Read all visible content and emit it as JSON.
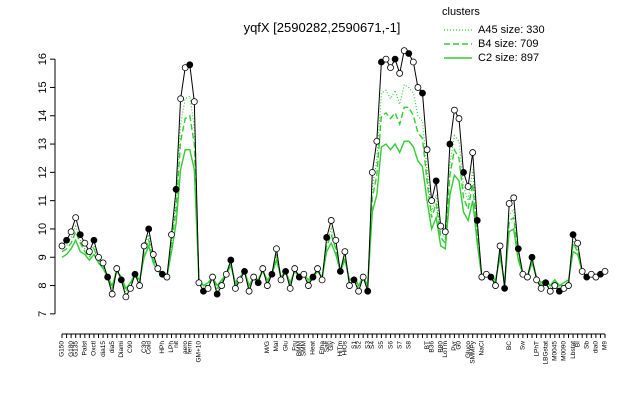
{
  "chart_data": {
    "type": "line",
    "title": "yqfX [2590282,2590671,-1]",
    "legend_title": "clusters",
    "ylim": [
      6.5,
      16.5
    ],
    "yticks": [
      7,
      8,
      9,
      10,
      11,
      12,
      13,
      14,
      15,
      16
    ],
    "categories": [
      "G150",
      null,
      "G180",
      "G135",
      null,
      "Palst",
      null,
      "Oxctl",
      null,
      "dia15",
      null,
      "dia5",
      null,
      "Diami",
      null,
      "C90",
      null,
      null,
      "C30",
      "Cold",
      null,
      null,
      "HPh",
      null,
      "LPh",
      "nit",
      null,
      "aero",
      "ferm",
      null,
      "GM+10",
      null,
      null,
      null,
      null,
      null,
      null,
      null,
      null,
      null,
      null,
      null,
      null,
      null,
      null,
      "M/G",
      null,
      "Mal",
      null,
      "Glu",
      null,
      "Fru",
      "BMM",
      "SMM",
      null,
      "Heat",
      null,
      "Etha",
      "Salt",
      "Gly",
      null,
      "HiTm",
      "HiOs",
      null,
      "S1",
      "S2",
      null,
      "S3",
      "S4",
      null,
      "S5",
      null,
      "S6",
      null,
      "S7",
      null,
      "S8",
      null,
      null,
      null,
      "BT",
      "B36",
      null,
      "B80",
      "LoTm",
      null,
      "Pyr",
      "G0",
      null,
      "Gluco",
      "SMMPy",
      null,
      "NaCl",
      null,
      null,
      null,
      null,
      null,
      "BC",
      null,
      null,
      "Sw",
      null,
      null,
      "LPhT",
      null,
      "LBGstat",
      null,
      "M0045",
      null,
      "M0090",
      null,
      "Lbstat",
      "BI",
      null,
      "Sb",
      null,
      "dia0",
      null,
      "M9"
    ],
    "series": [
      {
        "name": "A45 size: 330",
        "color": "#33cc33",
        "dash": "1,2",
        "width": 1.2,
        "points": false,
        "values": [
          9.3,
          9.4,
          9.7,
          10.1,
          9.6,
          9.3,
          9.1,
          9.4,
          8.9,
          8.7,
          8.3,
          7.8,
          8.6,
          8.2,
          7.7,
          8.0,
          8.4,
          8.1,
          9.3,
          9.8,
          9.0,
          8.6,
          8.4,
          8.3,
          9.6,
          11.0,
          13.7,
          14.6,
          14.7,
          13.6,
          8.1,
          7.9,
          8.0,
          8.3,
          7.8,
          8.1,
          8.4,
          8.8,
          8.0,
          8.2,
          8.5,
          7.9,
          8.3,
          8.1,
          8.6,
          8.1,
          8.4,
          9.2,
          8.2,
          8.5,
          8.0,
          8.6,
          8.3,
          8.4,
          8.1,
          8.3,
          8.6,
          8.2,
          9.5,
          10.0,
          9.4,
          8.5,
          9.1,
          8.1,
          8.2,
          7.9,
          8.3,
          7.9,
          11.5,
          12.4,
          14.8,
          14.9,
          14.6,
          14.9,
          14.4,
          15.1,
          15.0,
          14.8,
          14.0,
          13.8,
          12.1,
          10.6,
          11.2,
          9.8,
          9.7,
          12.3,
          13.3,
          13.1,
          11.5,
          11.0,
          12.1,
          10.0,
          8.3,
          8.4,
          8.3,
          8.1,
          9.3,
          8.0,
          10.5,
          10.7,
          9.2,
          8.4,
          8.3,
          8.9,
          8.2,
          8.0,
          8.1,
          7.9,
          8.1,
          7.9,
          8.0,
          8.1,
          9.6,
          9.3,
          8.5,
          8.3,
          8.4,
          8.3,
          8.4,
          8.5
        ]
      },
      {
        "name": "B4 size: 709",
        "color": "#33cc33",
        "dash": "6,3",
        "width": 1.4,
        "points": false,
        "values": [
          9.2,
          9.3,
          9.5,
          9.9,
          9.5,
          9.2,
          9.0,
          9.3,
          8.9,
          8.7,
          8.3,
          7.9,
          8.6,
          8.3,
          7.8,
          8.0,
          8.4,
          8.1,
          9.2,
          9.6,
          8.9,
          8.6,
          8.4,
          8.3,
          9.5,
          10.7,
          13.1,
          13.9,
          14.0,
          13.0,
          8.2,
          8.0,
          8.0,
          8.3,
          7.9,
          8.1,
          8.4,
          8.8,
          8.0,
          8.3,
          8.5,
          8.0,
          8.3,
          8.2,
          8.6,
          8.1,
          8.4,
          9.1,
          8.3,
          8.5,
          8.0,
          8.6,
          8.3,
          8.4,
          8.1,
          8.3,
          8.6,
          8.3,
          9.4,
          9.8,
          9.3,
          8.5,
          9.0,
          8.1,
          8.3,
          8.0,
          8.3,
          8.0,
          11.1,
          11.9,
          14.0,
          14.1,
          13.9,
          14.1,
          13.7,
          14.3,
          14.3,
          14.0,
          13.4,
          13.2,
          11.7,
          10.4,
          10.9,
          9.7,
          9.5,
          11.9,
          12.8,
          12.5,
          11.1,
          10.7,
          11.6,
          9.8,
          8.3,
          8.4,
          8.3,
          8.1,
          9.2,
          8.0,
          10.3,
          10.4,
          9.1,
          8.4,
          8.3,
          8.9,
          8.3,
          8.0,
          8.2,
          8.0,
          8.1,
          8.0,
          8.0,
          8.1,
          9.5,
          9.2,
          8.5,
          8.3,
          8.4,
          8.3,
          8.4,
          8.5
        ]
      },
      {
        "name": "C2 size: 897",
        "color": "#33cc33",
        "dash": null,
        "width": 1.4,
        "points": false,
        "values": [
          9.0,
          9.1,
          9.3,
          9.6,
          9.2,
          9.1,
          8.9,
          9.1,
          8.8,
          8.6,
          8.3,
          8.0,
          8.5,
          8.3,
          7.9,
          8.1,
          8.4,
          8.2,
          9.0,
          9.4,
          8.8,
          8.5,
          8.4,
          8.3,
          9.2,
          10.2,
          12.1,
          12.8,
          12.8,
          12.1,
          8.2,
          8.0,
          8.1,
          8.3,
          8.0,
          8.2,
          8.4,
          8.7,
          8.1,
          8.3,
          8.5,
          8.0,
          8.3,
          8.2,
          8.5,
          8.2,
          8.4,
          8.9,
          8.3,
          8.5,
          8.1,
          8.5,
          8.3,
          8.4,
          8.2,
          8.3,
          8.5,
          8.3,
          9.2,
          9.5,
          9.1,
          8.5,
          8.9,
          8.2,
          8.3,
          8.0,
          8.3,
          8.0,
          10.6,
          11.2,
          12.9,
          13.0,
          12.8,
          13.0,
          12.7,
          13.1,
          13.1,
          12.9,
          12.4,
          12.2,
          11.0,
          10.0,
          10.4,
          9.4,
          9.3,
          11.2,
          11.9,
          11.7,
          10.6,
          10.3,
          11.0,
          9.5,
          8.3,
          8.4,
          8.3,
          8.2,
          9.0,
          8.1,
          9.9,
          10.0,
          8.9,
          8.4,
          8.3,
          8.8,
          8.3,
          8.1,
          8.2,
          8.0,
          8.2,
          8.0,
          8.1,
          8.2,
          9.2,
          9.1,
          8.5,
          8.3,
          8.4,
          8.3,
          8.4,
          8.5
        ]
      },
      {
        "color": "#000000",
        "dash": null,
        "width": 1,
        "points": true,
        "values": [
          9.4,
          9.6,
          9.9,
          10.4,
          9.8,
          9.5,
          9.2,
          9.6,
          9.0,
          8.8,
          8.3,
          7.7,
          8.6,
          8.2,
          7.6,
          7.9,
          8.4,
          8.0,
          9.4,
          10.0,
          9.1,
          8.6,
          8.4,
          8.3,
          9.8,
          11.4,
          14.6,
          15.7,
          15.8,
          14.5,
          8.1,
          7.8,
          7.9,
          8.3,
          7.7,
          8.0,
          8.4,
          8.9,
          7.9,
          8.2,
          8.5,
          7.8,
          8.3,
          8.1,
          8.6,
          8.0,
          8.4,
          9.3,
          8.2,
          8.5,
          7.9,
          8.6,
          8.3,
          8.4,
          8.0,
          8.3,
          8.6,
          8.2,
          9.7,
          10.3,
          9.6,
          8.5,
          9.2,
          8.0,
          8.2,
          7.8,
          8.3,
          7.8,
          12.0,
          13.1,
          15.9,
          16.0,
          15.7,
          16.0,
          15.5,
          16.3,
          16.2,
          15.9,
          15.0,
          14.8,
          12.8,
          11.0,
          11.7,
          10.1,
          9.9,
          13.0,
          14.2,
          13.9,
          12.0,
          11.5,
          12.7,
          10.3,
          8.3,
          8.4,
          8.3,
          8.0,
          9.4,
          7.9,
          10.9,
          11.1,
          9.3,
          8.4,
          8.3,
          9.0,
          8.2,
          7.9,
          8.1,
          7.8,
          8.0,
          7.8,
          7.9,
          8.0,
          9.8,
          9.5,
          8.5,
          8.3,
          8.4,
          8.3,
          8.4,
          8.5
        ]
      }
    ]
  }
}
